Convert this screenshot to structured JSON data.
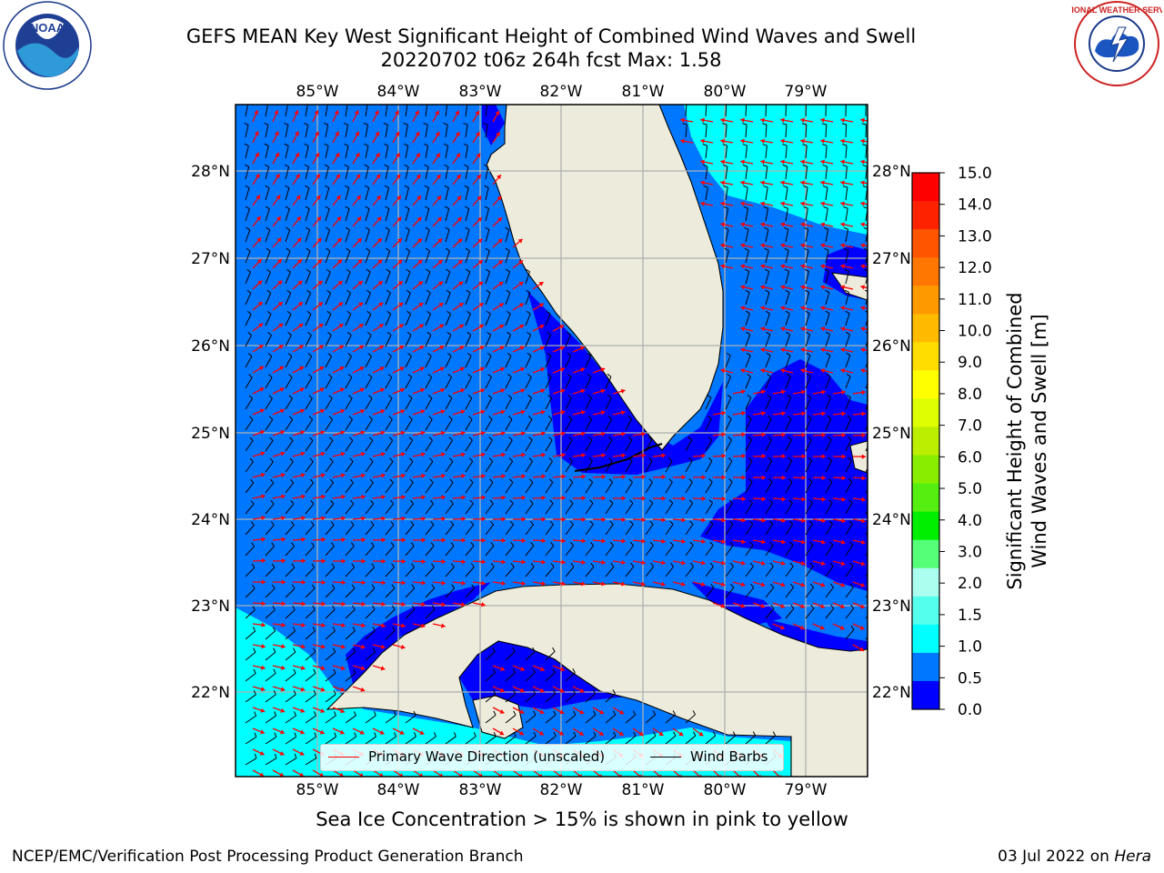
{
  "title": {
    "line1": "GEFS MEAN Key West Significant Height of Combined Wind Waves and Swell",
    "line2": "20220702 t06z 264h fcst   Max: 1.58"
  },
  "map": {
    "lon_ticks": [
      "85°W",
      "84°W",
      "83°W",
      "82°W",
      "81°W",
      "80°W",
      "79°W"
    ],
    "lat_ticks": [
      "28°N",
      "27°N",
      "26°N",
      "25°N",
      "24°N",
      "23°N",
      "22°N"
    ],
    "legend": {
      "wave_label": "Primary Wave Direction (unscaled)",
      "barb_label": "Wind Barbs"
    }
  },
  "colorbar": {
    "label_line1": "Significant Height of Combined",
    "label_line2": "Wind Waves and Swell [m]",
    "ticks": [
      "15.0",
      "14.0",
      "13.0",
      "12.0",
      "11.0",
      "10.0",
      "9.0",
      "8.0",
      "7.0",
      "6.0",
      "5.0",
      "4.0",
      "3.0",
      "2.0",
      "1.5",
      "1.0",
      "0.5",
      "0.0"
    ],
    "colors": [
      "#ff0000",
      "#ff2200",
      "#ff5500",
      "#ff7700",
      "#ff9900",
      "#ffbb00",
      "#ffdd00",
      "#ffff00",
      "#ddff00",
      "#bbee00",
      "#88ee00",
      "#55ee11",
      "#00ee00",
      "#55ff77",
      "#aaffee",
      "#55ffee",
      "#00ffff",
      "#0077ff",
      "#0000ff"
    ]
  },
  "colors": {
    "land": "#edecdc",
    "sea_low": "#0000ff",
    "sea_mid": "#0077ff",
    "sea_high": "#00ffff",
    "wave_arrow": "#ff0000",
    "barb": "#000000"
  },
  "note": "Sea Ice Concentration > 15% is shown in pink to yellow",
  "footer": {
    "left": "NCEP/EMC/Verification Post Processing Product Generation Branch",
    "right_date": "03 Jul 2022 on ",
    "right_host": "Hera"
  },
  "logos": {
    "noaa_text": "NOAA",
    "nws_text": "NATIONAL WEATHER SERVICE"
  }
}
